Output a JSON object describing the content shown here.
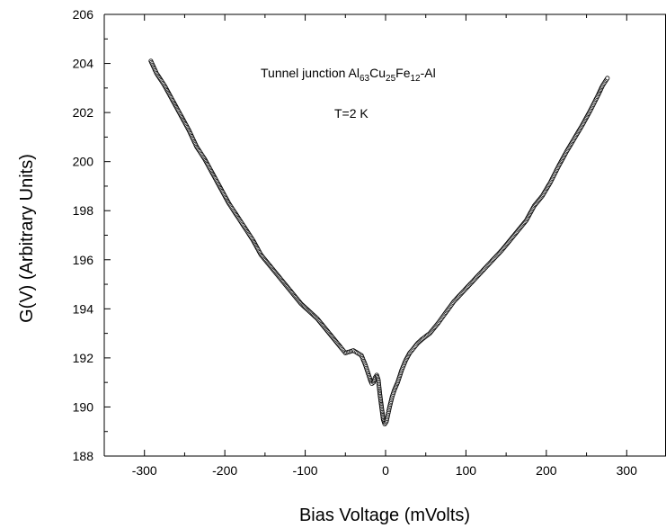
{
  "chart_data": {
    "type": "scatter",
    "xlabel": "Bias Voltage  (mVolts)",
    "ylabel": "G(V)  (Arbitrary Units)",
    "xlim": [
      -350,
      350
    ],
    "ylim": [
      188,
      206
    ],
    "xticks": [
      -300,
      -200,
      -100,
      0,
      100,
      200,
      300
    ],
    "yticks": [
      188,
      190,
      192,
      194,
      196,
      198,
      200,
      202,
      204,
      206
    ],
    "grid": false,
    "annotations": {
      "title_parts": [
        {
          "text": "Tunnel junction Al",
          "sub": false
        },
        {
          "text": "63",
          "sub": true
        },
        {
          "text": "Cu",
          "sub": false
        },
        {
          "text": "25",
          "sub": true
        },
        {
          "text": "Fe",
          "sub": false
        },
        {
          "text": "12",
          "sub": true
        },
        {
          "text": "-Al",
          "sub": false
        }
      ],
      "temperature": "T=2 K"
    },
    "series": [
      {
        "marker": "open-circle",
        "points": [
          [
            -292,
            204.1
          ],
          [
            -285,
            203.6
          ],
          [
            -275,
            203.1
          ],
          [
            -265,
            202.5
          ],
          [
            -255,
            201.9
          ],
          [
            -245,
            201.3
          ],
          [
            -235,
            200.6
          ],
          [
            -225,
            200.1
          ],
          [
            -215,
            199.5
          ],
          [
            -205,
            198.9
          ],
          [
            -195,
            198.3
          ],
          [
            -185,
            197.8
          ],
          [
            -175,
            197.3
          ],
          [
            -165,
            196.8
          ],
          [
            -155,
            196.2
          ],
          [
            -145,
            195.8
          ],
          [
            -135,
            195.4
          ],
          [
            -125,
            195.0
          ],
          [
            -115,
            194.6
          ],
          [
            -105,
            194.2
          ],
          [
            -95,
            193.9
          ],
          [
            -85,
            193.6
          ],
          [
            -75,
            193.2
          ],
          [
            -65,
            192.8
          ],
          [
            -55,
            192.4
          ],
          [
            -50,
            192.2
          ],
          [
            -45,
            192.25
          ],
          [
            -40,
            192.3
          ],
          [
            -35,
            192.2
          ],
          [
            -30,
            192.1
          ],
          [
            -25,
            191.7
          ],
          [
            -22,
            191.4
          ],
          [
            -19,
            191.1
          ],
          [
            -17,
            190.95
          ],
          [
            -15,
            191.0
          ],
          [
            -13,
            191.2
          ],
          [
            -11,
            191.3
          ],
          [
            -9,
            191.1
          ],
          [
            -7,
            190.5
          ],
          [
            -5,
            190.0
          ],
          [
            -3,
            189.5
          ],
          [
            -1,
            189.3
          ],
          [
            1,
            189.4
          ],
          [
            3,
            189.7
          ],
          [
            5,
            190.0
          ],
          [
            8,
            190.4
          ],
          [
            11,
            190.7
          ],
          [
            15,
            191.0
          ],
          [
            20,
            191.5
          ],
          [
            25,
            191.9
          ],
          [
            30,
            192.2
          ],
          [
            35,
            192.4
          ],
          [
            40,
            192.6
          ],
          [
            45,
            192.75
          ],
          [
            55,
            193.0
          ],
          [
            65,
            193.4
          ],
          [
            75,
            193.85
          ],
          [
            85,
            194.3
          ],
          [
            95,
            194.65
          ],
          [
            105,
            195.0
          ],
          [
            115,
            195.35
          ],
          [
            125,
            195.7
          ],
          [
            135,
            196.05
          ],
          [
            145,
            196.4
          ],
          [
            155,
            196.8
          ],
          [
            165,
            197.2
          ],
          [
            175,
            197.6
          ],
          [
            185,
            198.2
          ],
          [
            195,
            198.6
          ],
          [
            205,
            199.15
          ],
          [
            215,
            199.8
          ],
          [
            225,
            200.4
          ],
          [
            235,
            200.95
          ],
          [
            245,
            201.5
          ],
          [
            255,
            202.1
          ],
          [
            265,
            202.75
          ],
          [
            270,
            203.1
          ],
          [
            276,
            203.4
          ]
        ]
      }
    ]
  }
}
